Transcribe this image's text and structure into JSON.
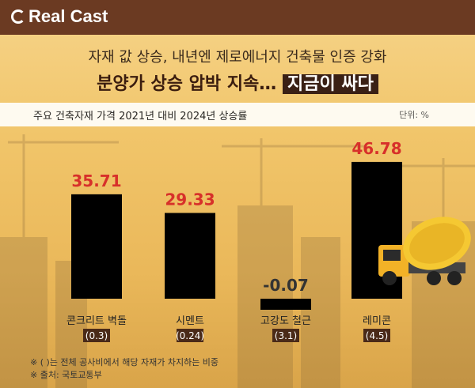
{
  "brand": {
    "name": "Real Cast"
  },
  "header": {
    "title_line1": "자재 값 상승, 내년엔 제로에너지 건축물 인증 강화",
    "title_line2_main": "분양가 상승 압박 지속…",
    "title_line2_highlight": "지금이 싸다"
  },
  "subheader": {
    "label": "주요 건축자재 가격 2021년 대비 2024년 상승률",
    "unit": "단위: %"
  },
  "colors": {
    "bar_top": "#e8463a",
    "bar_bottom": "#f7b23a",
    "negative_bar": "#6d6d6d",
    "value_text_pos": "#d7302a",
    "value_text_neg": "#333333"
  },
  "chart_data": {
    "type": "bar",
    "title": "주요 건축자재 가격 2021년 대비 2024년 상승률",
    "ylabel": "단위: %",
    "categories": [
      "콘크리트 벽돌",
      "시멘트",
      "고강도 철근",
      "레미콘"
    ],
    "shares": [
      "(0.3)",
      "(0.24)",
      "(3.1)",
      "(4.5)"
    ],
    "value_labels": [
      "35.71",
      "29.33",
      "-0.07",
      "46.78"
    ],
    "values": [
      35.71,
      29.33,
      -0.07,
      46.78
    ],
    "ylim": [
      -6,
      50
    ]
  },
  "footnotes": {
    "note1": "※ ( )는 전체 공사비에서 해당 자재가 차지하는 비중",
    "note2": "※ 출처: 국토교통부"
  }
}
